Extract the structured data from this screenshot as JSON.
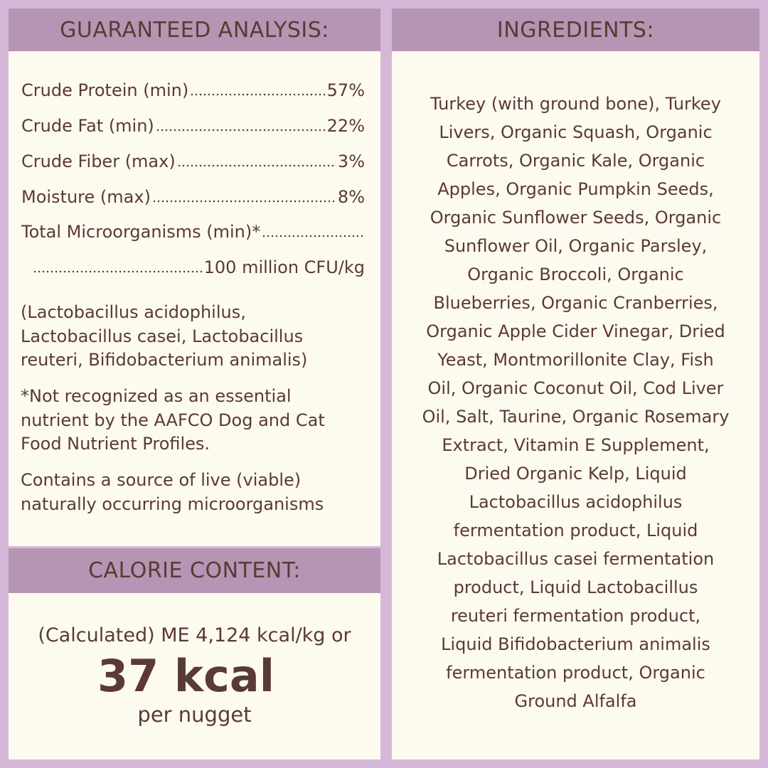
{
  "guaranteed_analysis": {
    "header": "GUARANTEED ANALYSIS:",
    "rows": [
      {
        "label": "Crude Protein (min)",
        "value": "57%"
      },
      {
        "label": "Crude Fat (min)",
        "value": "22%"
      },
      {
        "label": "Crude Fiber (max)",
        "value": "3%"
      },
      {
        "label": "Moisture (max)",
        "value": "8%"
      }
    ],
    "microorganisms": {
      "label": "Total Microorganisms (min)*",
      "value": "100 million CFU/kg"
    },
    "notes": [
      {
        "lines": [
          "(Lactobacillus acidophilus,",
          "Lactobacillus casei, Lactobacillus",
          "reuteri, Bifidobacterium animalis)"
        ]
      },
      {
        "lines": [
          "*Not recognized as an essential",
          "nutrient by the AAFCO Dog and Cat",
          "Food Nutrient Profiles."
        ]
      },
      {
        "lines": [
          "Contains a source of live (viable)",
          "naturally occurring microorganisms"
        ]
      }
    ]
  },
  "calorie_content": {
    "header": "CALORIE CONTENT:",
    "line1": "(Calculated) ME 4,124 kcal/kg or",
    "highlight": "37 kcal",
    "line3": "per nugget"
  },
  "ingredients": {
    "header": "INGREDIENTS:",
    "lines": [
      "Turkey (with ground bone), Turkey",
      "Livers, Organic Squash, Organic",
      "Carrots, Organic Kale, Organic",
      "Apples, Organic Pumpkin Seeds,",
      "Organic Sunflower Seeds, Organic",
      "Sunflower Oil, Organic Parsley,",
      "Organic Broccoli, Organic",
      "Blueberries, Organic Cranberries,",
      "Organic Apple Cider Vinegar, Dried",
      "Yeast, Montmorillonite Clay, Fish",
      "Oil, Organic Coconut Oil, Cod Liver",
      "Oil, Salt, Taurine, Organic Rosemary",
      "Extract, Vitamin E Supplement,",
      "Dried Organic Kelp, Liquid",
      "Lactobacillus acidophilus",
      "fermentation product, Liquid",
      "Lactobacillus casei fermentation",
      "product, Liquid Lactobacillus",
      "reuteri fermentation product,",
      "Liquid Bifidobacterium animalis",
      "fermentation product, Organic",
      "Ground Alfalfa"
    ]
  }
}
